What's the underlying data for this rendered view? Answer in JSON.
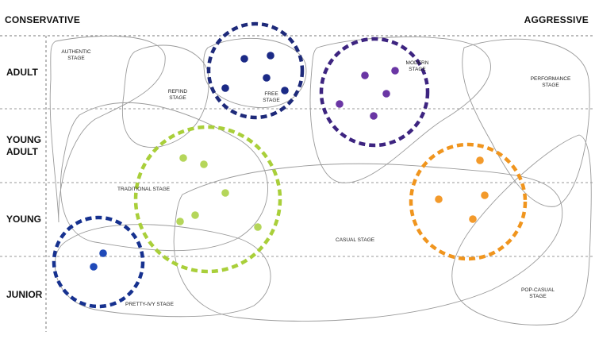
{
  "axis": {
    "left_label": "CONSERVATIVE",
    "right_label": "AGGRESSIVE"
  },
  "rows": [
    "ADULT",
    "YOUNG ADULT",
    "YOUNG",
    "JUNIOR"
  ],
  "stages": {
    "authentic": "AUTHENTIC STAGE",
    "refind": "REFIND STAGE",
    "free": "FREE STAGE",
    "modern": "MODERN STAGE",
    "performance": "PERFORMANCE STAGE",
    "traditional": "TRADITIONAL STAGE",
    "casual": "CASUAL STAGE",
    "pretty_ivy": "PRETTY-IVY STAGE",
    "pop_casual": "POP-CASUAL STAGE"
  },
  "cluster_colors": {
    "free": "#1e2a7a",
    "modern": "#3d2480",
    "traditional": "#a9cf3a",
    "orange": "#f0951e",
    "pretty_ivy": "#16318f"
  },
  "colors": {
    "dot_free": "#1b2a86",
    "dot_modern": "#6a36a4",
    "dot_traditional": "#b5d65a",
    "dot_orange": "#f39a2b",
    "dot_pretty_ivy": "#1f49b8",
    "outline": "#9a9a9a",
    "grid_line": "#777777"
  }
}
